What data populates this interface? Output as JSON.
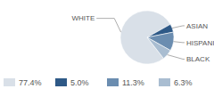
{
  "chart_data": {
    "type": "pie",
    "categories": [
      "WHITE",
      "ASIAN",
      "HISPANIC",
      "BLACK"
    ],
    "values": [
      77.4,
      5.0,
      11.3,
      6.3
    ],
    "value_labels": [
      "77.4%",
      "5.0%",
      "11.3%",
      "6.3%"
    ],
    "colors": [
      "#d9e0e8",
      "#2e5987",
      "#6b8db0",
      "#a9bdd1"
    ],
    "legend": "bottom"
  }
}
